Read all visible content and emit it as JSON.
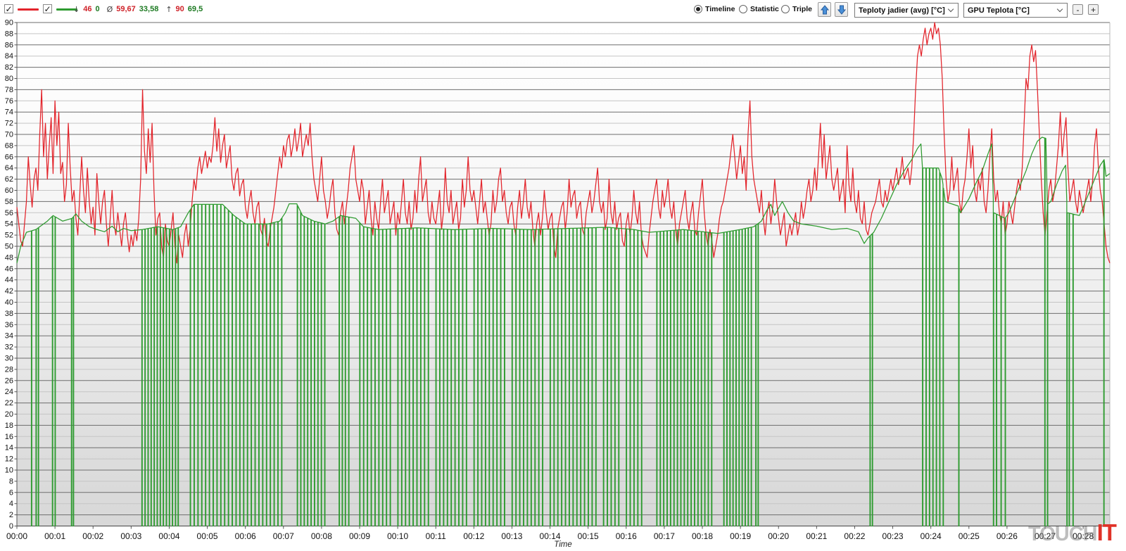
{
  "toolbar": {
    "stats": {
      "min_symbol": "↓",
      "min_cpu": "46",
      "min_gpu": "0",
      "avg_symbol": "Ø",
      "avg_cpu": "59,67",
      "avg_gpu": "33,58",
      "max_symbol": "↑",
      "max_cpu": "90",
      "max_gpu": "69,5"
    },
    "view_modes": [
      {
        "label": "Timeline",
        "selected": true
      },
      {
        "label": "Statistic",
        "selected": false
      },
      {
        "label": "Triple",
        "selected": false
      }
    ],
    "zoom_out_label": "-",
    "zoom_in_label": "+"
  },
  "icons": {
    "check": "✓"
  },
  "watermark": {
    "gray": "TOUCH",
    "red": "IT"
  },
  "chart_data": {
    "type": "line",
    "title": "",
    "xlabel": "Time",
    "x_tick_labels": [
      "00:00",
      "00:01",
      "00:02",
      "00:03",
      "00:04",
      "00:05",
      "00:06",
      "00:07",
      "00:08",
      "00:09",
      "00:10",
      "00:11",
      "00:12",
      "00:13",
      "00:14",
      "00:15",
      "00:16",
      "00:17",
      "00:18",
      "00:19",
      "00:20",
      "00:21",
      "00:22",
      "00:23",
      "00:24",
      "00:25",
      "00:26",
      "00:27",
      "00:28"
    ],
    "x_total_minutes": 28.7,
    "ylim": [
      0,
      90
    ],
    "y_tick_step": 2,
    "grid": "horizontal",
    "series": [
      {
        "name": "Teploty jadier (avg) [°C]",
        "color": "#e3242b",
        "stat_min": "46",
        "stat_avg": "59,67",
        "stat_max": "90",
        "dt_minutes": 0.05,
        "values": [
          57,
          54,
          51,
          50,
          54,
          58,
          66,
          61,
          57,
          62,
          64,
          60,
          70,
          78,
          66,
          72,
          62,
          68,
          73,
          63,
          76,
          68,
          74,
          63,
          65,
          58,
          61,
          72,
          64,
          58,
          60,
          55,
          52,
          59,
          66,
          60,
          56,
          64,
          58,
          54,
          57,
          52,
          63,
          58,
          54,
          58,
          60,
          54,
          50,
          55,
          60,
          54,
          52,
          56,
          53,
          50,
          54,
          56,
          52,
          49,
          52,
          50,
          53,
          51,
          55,
          62,
          78,
          67,
          63,
          71,
          65,
          72,
          60,
          52,
          55,
          56,
          50,
          48,
          54,
          51,
          50,
          53,
          56,
          50,
          47,
          52,
          50,
          48,
          52,
          54,
          50,
          53,
          58,
          62,
          60,
          64,
          66,
          63,
          65,
          67,
          64,
          66,
          65,
          68,
          73,
          67,
          71,
          65,
          68,
          70,
          64,
          66,
          68,
          62,
          60,
          63,
          64,
          59,
          61,
          62,
          57,
          55,
          58,
          60,
          56,
          54,
          57,
          58,
          53,
          52,
          55,
          51,
          50,
          53,
          55,
          57,
          60,
          63,
          66,
          64,
          68,
          66,
          69,
          70,
          66,
          68,
          71,
          67,
          69,
          72,
          66,
          68,
          70,
          68,
          72,
          66,
          62,
          60,
          58,
          62,
          66,
          60,
          58,
          55,
          57,
          60,
          62,
          56,
          53,
          52,
          56,
          58,
          54,
          57,
          60,
          64,
          66,
          68,
          62,
          60,
          58,
          62,
          60,
          54,
          57,
          60,
          55,
          52,
          58,
          55,
          53,
          58,
          62,
          56,
          58,
          60,
          54,
          56,
          58,
          52,
          56,
          54,
          58,
          62,
          56,
          54,
          58,
          53,
          55,
          60,
          56,
          62,
          66,
          58,
          60,
          62,
          56,
          54,
          58,
          55,
          54,
          57,
          60,
          53,
          56,
          64,
          58,
          56,
          60,
          54,
          56,
          58,
          53,
          55,
          62,
          57,
          60,
          66,
          60,
          58,
          60,
          57,
          54,
          58,
          62,
          56,
          58,
          55,
          52,
          54,
          60,
          56,
          58,
          62,
          64,
          58,
          60,
          56,
          54,
          57,
          58,
          54,
          52,
          57,
          60,
          55,
          58,
          62,
          57,
          55,
          58,
          53,
          50,
          54,
          56,
          52,
          55,
          60,
          56,
          53,
          55,
          56,
          50,
          48,
          53,
          55,
          57,
          58,
          53,
          56,
          62,
          57,
          59,
          60,
          55,
          57,
          58,
          53,
          52,
          56,
          58,
          60,
          56,
          58,
          61,
          64,
          58,
          56,
          58,
          53,
          55,
          62,
          56,
          54,
          58,
          53,
          55,
          56,
          51,
          50,
          54,
          56,
          52,
          55,
          60,
          56,
          54,
          58,
          52,
          50,
          49,
          48,
          52,
          55,
          58,
          60,
          62,
          57,
          55,
          60,
          57,
          59,
          62,
          57,
          55,
          58,
          53,
          50,
          54,
          56,
          58,
          60,
          55,
          53,
          56,
          58,
          53,
          52,
          56,
          59,
          62,
          56,
          52,
          50,
          53,
          51,
          48,
          50,
          52,
          55,
          57,
          58,
          60,
          62,
          64,
          67,
          70,
          66,
          62,
          65,
          68,
          63,
          66,
          60,
          70,
          76,
          66,
          62,
          60,
          58,
          56,
          60,
          55,
          52,
          56,
          58,
          54,
          57,
          62,
          58,
          55,
          52,
          54,
          56,
          50,
          52,
          54,
          52,
          54,
          56,
          52,
          54,
          58,
          55,
          57,
          60,
          62,
          58,
          60,
          64,
          60,
          66,
          72,
          64,
          70,
          62,
          65,
          68,
          62,
          60,
          62,
          64,
          58,
          60,
          62,
          56,
          68,
          61,
          58,
          64,
          58,
          56,
          60,
          55,
          54,
          58,
          53,
          52,
          54,
          56,
          57,
          58,
          60,
          62,
          58,
          57,
          60,
          58,
          60,
          62,
          60,
          62,
          64,
          61,
          63,
          66,
          62,
          63,
          64,
          61,
          64,
          70,
          78,
          84,
          86,
          84,
          87,
          89,
          86,
          88,
          89,
          87,
          90,
          88,
          89,
          86,
          80,
          70,
          62,
          58,
          60,
          66,
          60,
          62,
          64,
          58,
          56,
          60,
          62,
          66,
          71,
          64,
          68,
          60,
          58,
          62,
          60,
          64,
          58,
          56,
          60,
          66,
          71,
          62,
          58,
          60,
          56,
          54,
          58,
          52,
          54,
          58,
          56,
          54,
          57,
          60,
          62,
          60,
          64,
          72,
          80,
          78,
          84,
          86,
          83,
          85,
          78,
          70,
          62,
          56,
          52,
          56,
          60,
          62,
          58,
          60,
          64,
          68,
          74,
          66,
          70,
          73,
          64,
          58,
          60,
          62,
          58,
          56,
          60,
          58,
          56,
          58,
          60,
          62,
          58,
          62,
          68,
          71,
          64,
          60,
          58,
          54,
          50,
          48,
          47
        ]
      },
      {
        "name": "GPU Teplota [°C]",
        "color": "#2e9b30",
        "stat_min": "0",
        "stat_avg": "33,58",
        "stat_max": "69,5",
        "baseline_points": [
          [
            0,
            47
          ],
          [
            0.1,
            50
          ],
          [
            0.25,
            52.5
          ],
          [
            0.5,
            53
          ],
          [
            0.8,
            54.5
          ],
          [
            0.95,
            55.5
          ],
          [
            1.2,
            54.5
          ],
          [
            1.45,
            55
          ],
          [
            1.55,
            55.8
          ],
          [
            1.7,
            54.5
          ],
          [
            1.9,
            53.5
          ],
          [
            2.1,
            53
          ],
          [
            2.3,
            52.6
          ],
          [
            2.5,
            53.6
          ],
          [
            2.65,
            52.6
          ],
          [
            2.8,
            53.2
          ],
          [
            3.0,
            52.8
          ],
          [
            3.3,
            53
          ],
          [
            3.7,
            53.5
          ],
          [
            4.1,
            53
          ],
          [
            4.3,
            53.5
          ],
          [
            4.5,
            56
          ],
          [
            4.65,
            57.5
          ],
          [
            5.4,
            57.5
          ],
          [
            5.7,
            55.5
          ],
          [
            6.0,
            54
          ],
          [
            6.6,
            54
          ],
          [
            6.9,
            54.5
          ],
          [
            7.05,
            56
          ],
          [
            7.15,
            57.6
          ],
          [
            7.35,
            57.6
          ],
          [
            7.5,
            55.5
          ],
          [
            7.8,
            54.5
          ],
          [
            8.1,
            54
          ],
          [
            8.3,
            54.5
          ],
          [
            8.5,
            55.5
          ],
          [
            8.9,
            55
          ],
          [
            9.1,
            53.5
          ],
          [
            9.5,
            53
          ],
          [
            10.5,
            53.3
          ],
          [
            11.5,
            53
          ],
          [
            12.5,
            53.2
          ],
          [
            13.5,
            53
          ],
          [
            14.5,
            53.2
          ],
          [
            15.5,
            53.4
          ],
          [
            16.2,
            53
          ],
          [
            16.6,
            52.5
          ],
          [
            17.5,
            53
          ],
          [
            18.4,
            52.3
          ],
          [
            19.0,
            53
          ],
          [
            19.35,
            53.5
          ],
          [
            19.55,
            54.5
          ],
          [
            19.7,
            56.5
          ],
          [
            19.8,
            57.5
          ],
          [
            19.9,
            55.5
          ],
          [
            20.0,
            56.8
          ],
          [
            20.1,
            58
          ],
          [
            20.25,
            56
          ],
          [
            20.4,
            54.5
          ],
          [
            20.6,
            54
          ],
          [
            21.0,
            53.6
          ],
          [
            21.4,
            53
          ],
          [
            21.8,
            53.2
          ],
          [
            22.1,
            52.6
          ],
          [
            22.25,
            50.5
          ],
          [
            22.35,
            51.5
          ],
          [
            22.5,
            52.5
          ],
          [
            22.7,
            55
          ],
          [
            22.9,
            58
          ],
          [
            23.1,
            61
          ],
          [
            23.3,
            63.5
          ],
          [
            23.5,
            65.5
          ],
          [
            23.65,
            67.5
          ],
          [
            23.74,
            68.3
          ],
          [
            23.78,
            64
          ],
          [
            24.2,
            64
          ],
          [
            24.3,
            62
          ],
          [
            24.38,
            58
          ],
          [
            24.45,
            57.8
          ],
          [
            24.72,
            57.2
          ],
          [
            24.78,
            56
          ],
          [
            25.0,
            58.5
          ],
          [
            25.2,
            61.5
          ],
          [
            25.35,
            63.5
          ],
          [
            25.5,
            66.5
          ],
          [
            25.6,
            68.3
          ],
          [
            25.65,
            56
          ],
          [
            25.95,
            55
          ],
          [
            26.05,
            56
          ],
          [
            26.2,
            58.5
          ],
          [
            26.35,
            61
          ],
          [
            26.5,
            63.5
          ],
          [
            26.65,
            66.5
          ],
          [
            26.8,
            68.8
          ],
          [
            26.92,
            69.5
          ],
          [
            27.02,
            69.3
          ],
          [
            27.06,
            57.5
          ],
          [
            27.15,
            58
          ],
          [
            27.3,
            61
          ],
          [
            27.45,
            63.5
          ],
          [
            27.54,
            64.5
          ],
          [
            27.58,
            56
          ],
          [
            27.9,
            55.5
          ],
          [
            28.0,
            57
          ],
          [
            28.15,
            59.5
          ],
          [
            28.3,
            62
          ],
          [
            28.45,
            64.5
          ],
          [
            28.55,
            65.5
          ],
          [
            28.6,
            62.5
          ],
          [
            28.7,
            63
          ]
        ],
        "zero_drop_width_min": 0.012,
        "zero_drops": [
          0.38,
          0.5,
          0.56,
          0.93,
          1.0,
          1.43,
          1.48,
          3.28,
          3.36,
          3.44,
          3.52,
          3.6,
          3.68,
          3.76,
          3.84,
          3.92,
          4.0,
          4.08,
          4.16,
          4.23,
          4.55,
          4.65,
          4.75,
          4.85,
          4.95,
          5.05,
          5.15,
          5.25,
          5.35,
          5.45,
          5.55,
          5.65,
          5.75,
          5.85,
          5.95,
          6.05,
          6.15,
          6.25,
          6.35,
          6.45,
          6.55,
          6.65,
          6.75,
          6.85,
          6.95,
          7.36,
          7.45,
          7.54,
          7.63,
          7.72,
          7.81,
          7.9,
          7.99,
          8.08,
          8.46,
          8.54,
          8.62,
          8.71,
          9.0,
          9.1,
          9.2,
          9.3,
          9.4,
          9.5,
          9.6,
          9.7,
          9.8,
          10.0,
          10.1,
          10.2,
          10.3,
          10.4,
          10.5,
          10.6,
          10.7,
          10.8,
          11.0,
          11.1,
          11.2,
          11.3,
          11.4,
          11.5,
          11.6,
          11.7,
          11.8,
          12.0,
          12.1,
          12.2,
          12.3,
          12.4,
          12.5,
          12.6,
          12.7,
          12.8,
          13.0,
          13.1,
          13.2,
          13.3,
          13.4,
          13.5,
          13.6,
          13.7,
          13.8,
          14.0,
          14.1,
          14.2,
          14.3,
          14.4,
          14.5,
          14.6,
          14.7,
          14.8,
          14.9,
          15.0,
          15.1,
          15.2,
          15.4,
          15.5,
          15.6,
          15.7,
          15.8,
          16.0,
          16.1,
          16.2,
          16.3,
          16.4,
          16.8,
          16.89,
          16.98,
          17.07,
          17.16,
          17.25,
          17.34,
          17.43,
          17.52,
          17.61,
          17.7,
          17.79,
          17.88,
          17.97,
          18.06,
          18.15,
          18.24,
          18.56,
          18.64,
          18.72,
          18.8,
          18.88,
          18.96,
          19.04,
          19.12,
          19.2,
          19.28,
          19.4,
          19.46,
          22.4,
          22.46,
          23.78,
          23.87,
          23.96,
          24.05,
          24.14,
          24.23,
          24.32,
          24.73,
          25.64,
          25.72,
          25.84,
          25.95,
          26.99,
          27.06,
          27.57,
          27.63,
          27.73,
          28.54
        ]
      }
    ]
  }
}
